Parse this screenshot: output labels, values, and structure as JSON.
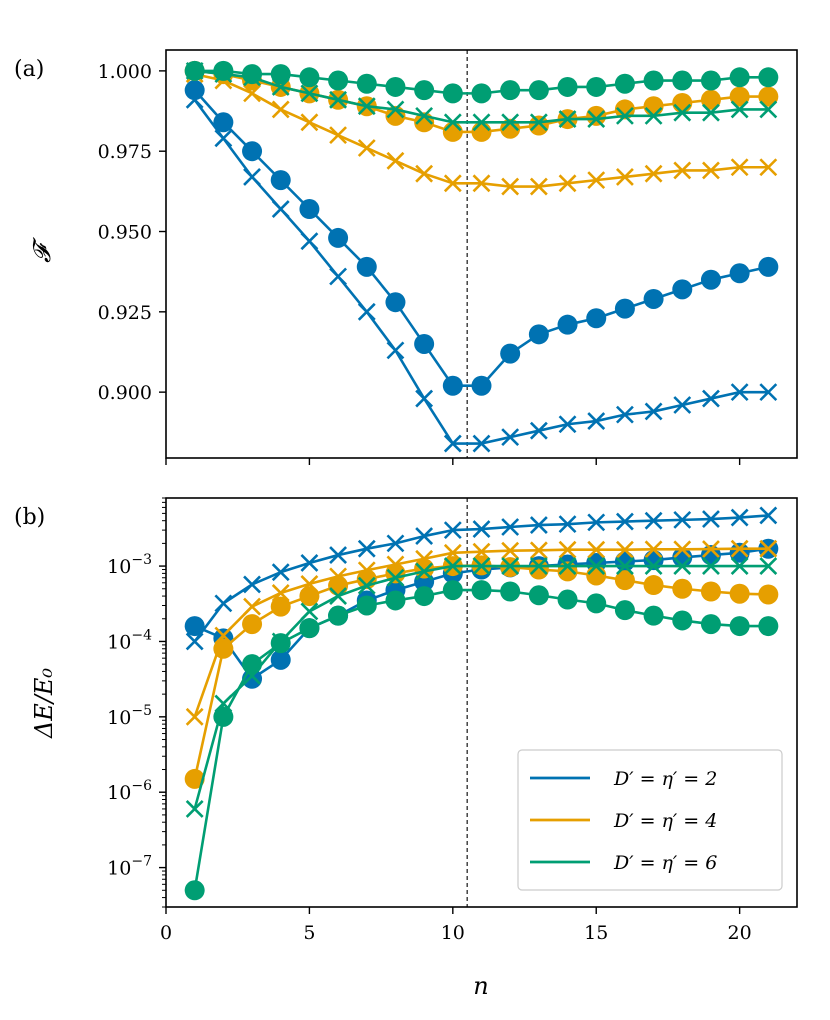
{
  "figure": {
    "panel_a_label": "(a)",
    "panel_b_label": "(b)"
  },
  "colors": {
    "D2": "#0072b2",
    "D4": "#e69f00",
    "D6": "#009e73"
  },
  "chart_data": [
    {
      "type": "line",
      "panel": "(a)",
      "ylabel": "𝓕",
      "xlabel": "",
      "xlim": [
        0,
        22
      ],
      "ylim": [
        0.8795,
        1.0065
      ],
      "y_ticks": [
        0.9,
        0.925,
        0.95,
        0.975,
        1.0
      ],
      "y_tick_labels": [
        "0.900",
        "0.925",
        "0.950",
        "0.975",
        "1.000"
      ],
      "x_ticks": [
        0,
        5,
        10,
        15,
        20
      ],
      "vline_x": 10.5,
      "x": [
        1,
        2,
        3,
        4,
        5,
        6,
        7,
        8,
        9,
        10,
        11,
        12,
        13,
        14,
        15,
        16,
        17,
        18,
        19,
        20,
        21
      ],
      "series": [
        {
          "name": "D2-circle",
          "group": "D2",
          "marker": "circle",
          "values": [
            0.994,
            0.984,
            0.975,
            0.966,
            0.957,
            0.948,
            0.939,
            0.928,
            0.915,
            0.902,
            0.902,
            0.912,
            0.918,
            0.921,
            0.923,
            0.926,
            0.929,
            0.932,
            0.935,
            0.937,
            0.939
          ]
        },
        {
          "name": "D2-cross",
          "group": "D2",
          "marker": "cross",
          "values": [
            0.991,
            0.979,
            0.967,
            0.957,
            0.947,
            0.936,
            0.925,
            0.913,
            0.898,
            0.884,
            0.884,
            0.886,
            0.888,
            0.89,
            0.891,
            0.893,
            0.894,
            0.896,
            0.898,
            0.9,
            0.9
          ]
        },
        {
          "name": "D4-circle",
          "group": "D4",
          "marker": "circle",
          "values": [
            1.0,
            0.999,
            0.997,
            0.995,
            0.993,
            0.991,
            0.989,
            0.986,
            0.984,
            0.981,
            0.981,
            0.982,
            0.983,
            0.985,
            0.986,
            0.988,
            0.989,
            0.99,
            0.991,
            0.992,
            0.992
          ]
        },
        {
          "name": "D4-cross",
          "group": "D4",
          "marker": "cross",
          "values": [
            0.999,
            0.997,
            0.993,
            0.988,
            0.984,
            0.98,
            0.976,
            0.972,
            0.968,
            0.965,
            0.965,
            0.964,
            0.964,
            0.965,
            0.966,
            0.967,
            0.968,
            0.969,
            0.969,
            0.97,
            0.97
          ]
        },
        {
          "name": "D6-circle",
          "group": "D6",
          "marker": "circle",
          "values": [
            1.0,
            1.0,
            0.999,
            0.999,
            0.998,
            0.997,
            0.996,
            0.995,
            0.994,
            0.993,
            0.993,
            0.994,
            0.994,
            0.995,
            0.995,
            0.996,
            0.997,
            0.997,
            0.997,
            0.998,
            0.998
          ]
        },
        {
          "name": "D6-cross",
          "group": "D6",
          "marker": "cross",
          "values": [
            1.0,
            0.999,
            0.998,
            0.995,
            0.993,
            0.991,
            0.989,
            0.988,
            0.986,
            0.984,
            0.984,
            0.984,
            0.984,
            0.985,
            0.985,
            0.986,
            0.986,
            0.987,
            0.987,
            0.988,
            0.988
          ]
        }
      ]
    },
    {
      "type": "line",
      "panel": "(b)",
      "yscale": "log",
      "ylabel": "ΔE/E₀",
      "xlabel": "n",
      "xlim": [
        0,
        22
      ],
      "ylim": [
        3e-08,
        0.008
      ],
      "y_ticks": [
        1e-07,
        1e-06,
        1e-05,
        0.0001,
        0.001
      ],
      "y_tick_labels": [
        "10−7",
        "10−6",
        "10−5",
        "10−4",
        "10−3"
      ],
      "x_ticks": [
        0,
        5,
        10,
        15,
        20
      ],
      "x_tick_labels": [
        "0",
        "5",
        "10",
        "15",
        "20"
      ],
      "vline_x": 10.5,
      "legend_position": "lower-right",
      "legend": [
        {
          "group": "D2",
          "label": "D′ = η′ = 2"
        },
        {
          "group": "D4",
          "label": "D′ = η′ = 4"
        },
        {
          "group": "D6",
          "label": "D′ = η′ = 6"
        }
      ],
      "x": [
        1,
        2,
        3,
        4,
        5,
        6,
        7,
        8,
        9,
        10,
        11,
        12,
        13,
        14,
        15,
        16,
        17,
        18,
        19,
        20,
        21
      ],
      "series": [
        {
          "name": "D2-circle",
          "group": "D2",
          "marker": "circle",
          "values": [
            0.00016,
            0.00011,
            3.2e-05,
            5.7e-05,
            0.00015,
            0.00022,
            0.00035,
            0.00048,
            0.00062,
            0.0008,
            0.0009,
            0.00096,
            0.001,
            0.00105,
            0.0011,
            0.00115,
            0.0012,
            0.0013,
            0.0014,
            0.0015,
            0.0017
          ]
        },
        {
          "name": "D2-cross",
          "group": "D2",
          "marker": "cross",
          "values": [
            0.0001,
            0.00032,
            0.00057,
            0.00083,
            0.0011,
            0.0014,
            0.0017,
            0.002,
            0.0025,
            0.003,
            0.0031,
            0.0033,
            0.0035,
            0.0036,
            0.0038,
            0.0039,
            0.004,
            0.0041,
            0.0042,
            0.0044,
            0.0047
          ]
        },
        {
          "name": "D4-circle",
          "group": "D4",
          "marker": "circle",
          "values": [
            1.5e-06,
            8e-05,
            0.00017,
            0.00029,
            0.0004,
            0.00055,
            0.00067,
            0.0008,
            0.00093,
            0.001,
            0.00102,
            0.00097,
            0.0009,
            0.00085,
            0.00075,
            0.00065,
            0.00056,
            0.0005,
            0.00046,
            0.00043,
            0.00042
          ]
        },
        {
          "name": "D4-cross",
          "group": "D4",
          "marker": "cross",
          "values": [
            1e-05,
            0.00012,
            0.00029,
            0.00044,
            0.00058,
            0.00073,
            0.00088,
            0.00105,
            0.00125,
            0.0015,
            0.00155,
            0.0016,
            0.00162,
            0.00165,
            0.00165,
            0.00165,
            0.00167,
            0.00167,
            0.00168,
            0.0017,
            0.0017
          ]
        },
        {
          "name": "D6-circle",
          "group": "D6",
          "marker": "circle",
          "values": [
            5e-08,
            1e-05,
            5e-05,
            9.5e-05,
            0.00015,
            0.00022,
            0.0003,
            0.00035,
            0.0004,
            0.00048,
            0.00048,
            0.00046,
            0.00041,
            0.00036,
            0.00032,
            0.00026,
            0.00022,
            0.00019,
            0.00017,
            0.00016,
            0.00016
          ]
        },
        {
          "name": "D6-cross",
          "group": "D6",
          "marker": "cross",
          "values": [
            6e-07,
            1.5e-05,
            3.5e-05,
            0.0001,
            0.00025,
            0.0004,
            0.00055,
            0.0007,
            0.00085,
            0.001,
            0.001,
            0.001,
            0.001,
            0.001,
            0.001,
            0.001,
            0.001,
            0.001,
            0.001,
            0.001,
            0.001
          ]
        }
      ]
    }
  ]
}
